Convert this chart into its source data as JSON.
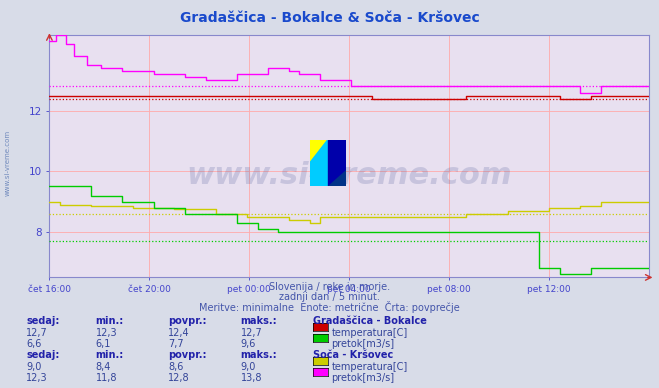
{
  "title": "Gradaščica - Bokalce & Soča - Kršovec",
  "title_color": "#1a4acc",
  "bg_color": "#d8dce8",
  "plot_bg_color": "#e8e0f0",
  "grid_color_v": "#ffaaaa",
  "grid_color_h": "#ffaaaa",
  "axis_color": "#4444cc",
  "subtitle1": "Slovenija / reke in morje.",
  "subtitle2": "zadnji dan / 5 minut.",
  "subtitle3": "Meritve: minimalne  Enote: metrične  Črta: povprečje",
  "xlabel_ticks": [
    "čet 16:00",
    "čet 20:00",
    "pet 00:00",
    "pet 04:00",
    "pet 08:00",
    "pet 12:00"
  ],
  "xlim": [
    0,
    288
  ],
  "ylim": [
    6.5,
    14.5
  ],
  "yticks": [
    8,
    10,
    12
  ],
  "watermark": "www.si-vreme.com",
  "series": {
    "grad_temp": {
      "color": "#cc0000",
      "avg": 12.4
    },
    "grad_pretok": {
      "color": "#00cc00",
      "avg": 7.7
    },
    "soca_temp": {
      "color": "#cccc00",
      "avg": 8.6
    },
    "soca_pretok": {
      "color": "#ff00ff",
      "avg": 12.8
    }
  },
  "legend_table": {
    "station1": "Gradaščica - Bokalce",
    "s1_sedaj": [
      "12,7",
      "6,6"
    ],
    "s1_min": [
      "12,3",
      "6,1"
    ],
    "s1_povpr": [
      "12,4",
      "7,7"
    ],
    "s1_maks": [
      "12,7",
      "9,6"
    ],
    "s1_colors": [
      "#cc0000",
      "#00cc00"
    ],
    "s1_labels": [
      "temperatura[C]",
      "pretok[m3/s]"
    ],
    "station2": "Soča - Kršovec",
    "s2_sedaj": [
      "9,0",
      "12,3"
    ],
    "s2_min": [
      "8,4",
      "11,8"
    ],
    "s2_povpr": [
      "8,6",
      "12,8"
    ],
    "s2_maks": [
      "9,0",
      "13,8"
    ],
    "s2_colors": [
      "#cccc00",
      "#ff00ff"
    ],
    "s2_labels": [
      "temperatura[C]",
      "pretok[m3/s]"
    ]
  }
}
